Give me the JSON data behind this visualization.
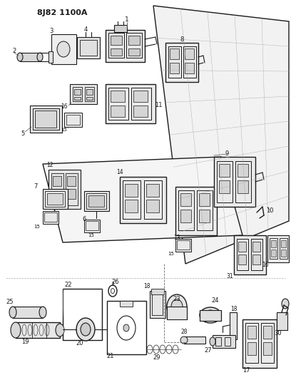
{
  "title": "8J82 1100A",
  "bg_color": "#ffffff",
  "line_color": "#1a1a1a",
  "fig_width": 4.08,
  "fig_height": 5.33,
  "dpi": 100
}
